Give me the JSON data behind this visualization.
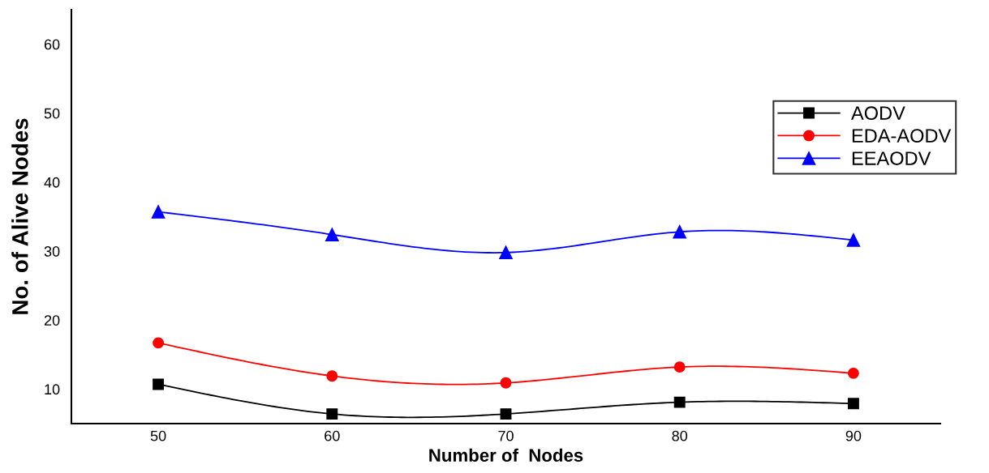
{
  "chart_data": {
    "type": "line",
    "xlabel": "Number of  Nodes",
    "ylabel": "No. of Alive Nodes",
    "x": [
      50,
      60,
      70,
      80,
      90
    ],
    "series": [
      {
        "name": "AODV",
        "color": "#000000",
        "marker": "square",
        "values": [
          10.7,
          6.4,
          6.4,
          8.1,
          7.9
        ]
      },
      {
        "name": "EDA-AODV",
        "color": "#ff0000",
        "marker": "circle",
        "values": [
          16.7,
          11.9,
          10.9,
          13.2,
          12.3
        ]
      },
      {
        "name": "EEAODV",
        "color": "#0000ff",
        "marker": "triangle",
        "values": [
          35.7,
          32.4,
          29.8,
          32.8,
          31.6
        ]
      }
    ],
    "xlim": [
      45,
      95
    ],
    "xticks": [
      50,
      60,
      70,
      80,
      90
    ],
    "ylim": [
      5,
      65
    ],
    "yticks": [
      10,
      20,
      30,
      40,
      50,
      60
    ],
    "grid": false,
    "legend": "right",
    "line_style": "solid"
  }
}
